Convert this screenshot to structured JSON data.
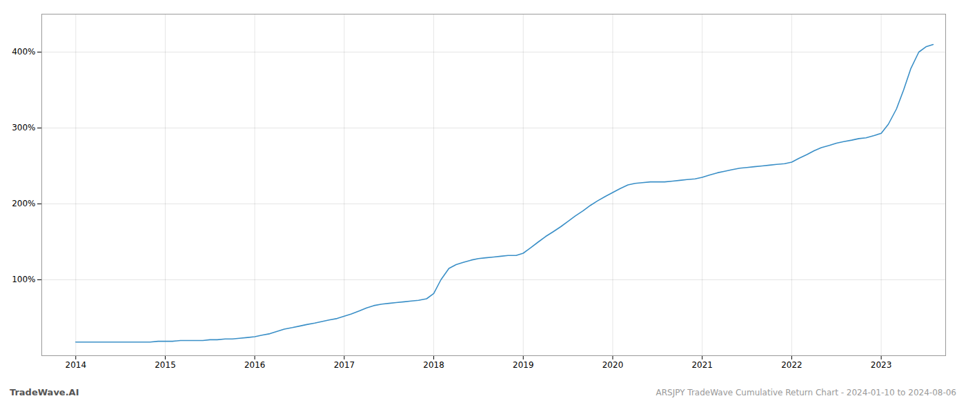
{
  "chart_data": {
    "type": "line",
    "title": "ARSJPY TradeWave Cumulative Return Chart - 2024-01-10 to 2024-08-06",
    "annotations": [
      "TradeWave.AI"
    ],
    "color": "#3a8fc7",
    "grid": true,
    "xlim": [
      2013.62,
      2023.72
    ],
    "xticks": [
      2014,
      2015,
      2016,
      2017,
      2018,
      2019,
      2020,
      2021,
      2022,
      2023
    ],
    "ylim": [
      0,
      450
    ],
    "yticks": [
      {
        "value": 100,
        "label": "100%"
      },
      {
        "value": 200,
        "label": "200%"
      },
      {
        "value": 300,
        "label": "300%"
      },
      {
        "value": 400,
        "label": "400%"
      }
    ],
    "x": [
      2014.0,
      2014.08,
      2014.17,
      2014.25,
      2014.33,
      2014.42,
      2014.5,
      2014.58,
      2014.67,
      2014.75,
      2014.83,
      2014.92,
      2015.0,
      2015.08,
      2015.17,
      2015.25,
      2015.33,
      2015.42,
      2015.5,
      2015.58,
      2015.67,
      2015.75,
      2015.83,
      2015.92,
      2016.0,
      2016.08,
      2016.17,
      2016.25,
      2016.33,
      2016.42,
      2016.5,
      2016.58,
      2016.67,
      2016.75,
      2016.83,
      2016.92,
      2017.0,
      2017.08,
      2017.17,
      2017.25,
      2017.33,
      2017.42,
      2017.5,
      2017.58,
      2017.67,
      2017.75,
      2017.83,
      2017.92,
      2018.0,
      2018.08,
      2018.17,
      2018.25,
      2018.33,
      2018.42,
      2018.5,
      2018.58,
      2018.67,
      2018.75,
      2018.83,
      2018.92,
      2019.0,
      2019.08,
      2019.17,
      2019.25,
      2019.33,
      2019.42,
      2019.5,
      2019.58,
      2019.67,
      2019.75,
      2019.83,
      2019.92,
      2020.0,
      2020.08,
      2020.17,
      2020.25,
      2020.33,
      2020.42,
      2020.5,
      2020.58,
      2020.67,
      2020.75,
      2020.83,
      2020.92,
      2021.0,
      2021.08,
      2021.17,
      2021.25,
      2021.33,
      2021.42,
      2021.5,
      2021.58,
      2021.67,
      2021.75,
      2021.83,
      2021.92,
      2022.0,
      2022.08,
      2022.17,
      2022.25,
      2022.33,
      2022.42,
      2022.5,
      2022.58,
      2022.67,
      2022.75,
      2022.83,
      2022.92,
      2023.0,
      2023.08,
      2023.17,
      2023.25,
      2023.33,
      2023.42,
      2023.5,
      2023.58
    ],
    "values": [
      18,
      18,
      18,
      18,
      18,
      18,
      18,
      18,
      18,
      18,
      18,
      19,
      19,
      19,
      20,
      20,
      20,
      20,
      21,
      21,
      22,
      22,
      23,
      24,
      25,
      27,
      29,
      32,
      35,
      37,
      39,
      41,
      43,
      45,
      47,
      49,
      52,
      55,
      59,
      63,
      66,
      68,
      69,
      70,
      71,
      72,
      73,
      75,
      82,
      100,
      115,
      120,
      123,
      126,
      128,
      129,
      130,
      131,
      132,
      132,
      135,
      142,
      150,
      157,
      163,
      170,
      177,
      184,
      191,
      198,
      204,
      210,
      215,
      220,
      225,
      227,
      228,
      229,
      229,
      229,
      230,
      231,
      232,
      233,
      235,
      238,
      241,
      243,
      245,
      247,
      248,
      249,
      250,
      251,
      252,
      253,
      255,
      260,
      265,
      270,
      274,
      277,
      280,
      282,
      284,
      286,
      287,
      290,
      293,
      305,
      325,
      350,
      378,
      400,
      407,
      410
    ]
  }
}
